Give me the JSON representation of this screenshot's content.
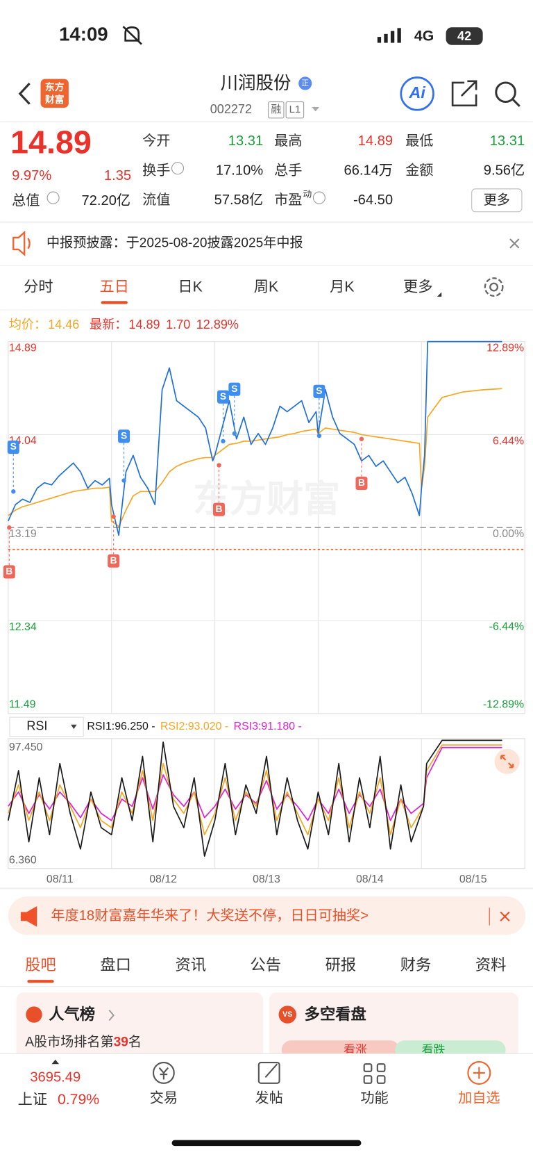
{
  "status_bar": {
    "time": "14:09",
    "network": "4G",
    "battery": "42"
  },
  "header": {
    "logo": [
      "东方",
      "财富"
    ],
    "name": "川润股份",
    "badge": "正",
    "code": "002272",
    "tags": [
      "融",
      "L1"
    ],
    "ai": "Ai"
  },
  "quote": {
    "price": "14.89",
    "change_pct": "9.97%",
    "change": "1.35",
    "market_cap_label": "总值",
    "market_cap": "72.20亿",
    "stats": [
      {
        "label": "今开",
        "value": "13.31",
        "color": "#1a9e3a"
      },
      {
        "label": "最高",
        "value": "14.89",
        "color": "#e8322a"
      },
      {
        "label": "最低",
        "value": "13.31",
        "color": "#1a9e3a"
      },
      {
        "label": "换手",
        "value": "17.10%",
        "info": true
      },
      {
        "label": "总手",
        "value": "66.14万"
      },
      {
        "label": "金额",
        "value": "9.56亿"
      },
      {
        "label": "流值",
        "value": "57.58亿"
      },
      {
        "label": "市盈",
        "sup": "动",
        "value": "-64.50",
        "info": true
      }
    ],
    "more": "更多"
  },
  "notice": {
    "text": "中报预披露：于2025-08-20披露2025年中报"
  },
  "tabs": {
    "items": [
      "分时",
      "五日",
      "日K",
      "周K",
      "月K",
      "更多"
    ],
    "active": 1
  },
  "chart_data": [
    {
      "type": "line",
      "watermark": "东方财富",
      "legend": {
        "avg_label": "均价：",
        "avg": "14.46",
        "last_label": "最新：",
        "last": "14.89",
        "change": "1.70",
        "change_pct": "12.89%"
      },
      "xlim": [
        0,
        5
      ],
      "ylim": [
        11.49,
        14.89
      ],
      "yticks": [
        11.49,
        12.34,
        13.19,
        14.04,
        14.89
      ],
      "y2lim": [
        -12.89,
        12.89
      ],
      "y2ticks": [
        {
          "value": -12.89,
          "label": "-12.89%"
        },
        {
          "value": -6.44,
          "label": "-6.44%"
        },
        {
          "value": 0,
          "label": "0.00%"
        },
        {
          "value": 6.44,
          "label": "6.44%"
        },
        {
          "value": 12.89,
          "label": "12.89%"
        }
      ],
      "reference_line": {
        "value": 12.99,
        "color": "#ff5a1f"
      },
      "x": [
        0,
        0.07,
        0.14,
        0.21,
        0.28,
        0.35,
        0.42,
        0.49,
        0.56,
        0.63,
        0.7,
        0.77,
        0.84,
        0.91,
        0.98,
        1,
        1.07,
        1.14,
        1.21,
        1.28,
        1.35,
        1.42,
        1.49,
        1.56,
        1.63,
        1.7,
        1.77,
        1.84,
        1.91,
        1.98,
        2,
        2.07,
        2.14,
        2.21,
        2.28,
        2.35,
        2.42,
        2.49,
        2.56,
        2.63,
        2.7,
        2.77,
        2.84,
        2.91,
        2.98,
        3,
        3.07,
        3.14,
        3.21,
        3.28,
        3.35,
        3.42,
        3.49,
        3.56,
        3.63,
        3.7,
        3.77,
        3.84,
        3.91,
        3.98,
        4,
        4.03,
        4.06,
        4.2,
        4.4,
        4.6,
        4.78
      ],
      "series": [
        {
          "name": "最新",
          "color": "#1e6fd9",
          "values": [
            13.25,
            13.4,
            13.45,
            13.42,
            13.55,
            13.6,
            13.58,
            13.66,
            13.72,
            13.78,
            13.7,
            13.55,
            13.62,
            13.58,
            13.64,
            13.4,
            13.12,
            13.7,
            13.85,
            13.65,
            13.55,
            13.4,
            14.45,
            14.65,
            14.35,
            14.3,
            14.25,
            14.2,
            14.1,
            13.8,
            13.85,
            14.1,
            14.35,
            14.0,
            14.2,
            13.95,
            14.05,
            13.95,
            14.1,
            14.3,
            14.25,
            14.3,
            14.35,
            14.15,
            14.25,
            14.05,
            14.45,
            14.2,
            14.05,
            14.0,
            13.95,
            13.8,
            13.85,
            13.75,
            13.8,
            13.7,
            13.6,
            13.65,
            13.5,
            13.3,
            13.55,
            13.85,
            14.89,
            14.89,
            14.89,
            14.89,
            14.89
          ]
        },
        {
          "name": "均价",
          "color": "#f5a623",
          "values": [
            13.3,
            13.35,
            13.38,
            13.4,
            13.42,
            13.44,
            13.46,
            13.48,
            13.5,
            13.52,
            13.53,
            13.54,
            13.55,
            13.55,
            13.56,
            13.25,
            13.2,
            13.35,
            13.48,
            13.52,
            13.52,
            13.52,
            13.6,
            13.7,
            13.75,
            13.78,
            13.8,
            13.82,
            13.83,
            13.83,
            13.85,
            13.9,
            13.95,
            13.96,
            13.98,
            13.98,
            13.99,
            14.0,
            14.01,
            14.02,
            14.04,
            14.05,
            14.07,
            14.08,
            14.09,
            14.05,
            14.1,
            14.09,
            14.08,
            14.07,
            14.06,
            14.04,
            14.03,
            14.02,
            14.01,
            14.0,
            13.99,
            13.98,
            13.97,
            13.96,
            13.55,
            13.75,
            14.2,
            14.38,
            14.43,
            14.45,
            14.46
          ]
        }
      ],
      "annotations": [
        {
          "label": "S",
          "x": 0.05,
          "y": 13.52,
          "color": "#3d8ef0"
        },
        {
          "label": "B",
          "x": 0.01,
          "y": 13.19,
          "color": "#f0675a"
        },
        {
          "label": "B",
          "x": 1.02,
          "y": 13.29,
          "color": "#f0675a"
        },
        {
          "label": "S",
          "x": 1.12,
          "y": 13.62,
          "color": "#3d8ef0"
        },
        {
          "label": "B",
          "x": 2.04,
          "y": 13.76,
          "color": "#f0675a"
        },
        {
          "label": "S",
          "x": 2.08,
          "y": 13.98,
          "color": "#3d8ef0"
        },
        {
          "label": "S",
          "x": 2.19,
          "y": 14.05,
          "color": "#3d8ef0"
        },
        {
          "label": "S",
          "x": 3.01,
          "y": 14.03,
          "color": "#3d8ef0"
        },
        {
          "label": "B",
          "x": 3.42,
          "y": 14.0,
          "color": "#f0675a"
        }
      ]
    },
    {
      "type": "line",
      "selector": "RSI",
      "xlim": [
        0,
        5
      ],
      "ylim": [
        6.36,
        97.45
      ],
      "yticks": [
        {
          "value": 6.36,
          "label": "6.360"
        },
        {
          "value": 97.45,
          "label": "97.450"
        }
      ],
      "xticks": [
        {
          "value": 0.5,
          "label": "08/11"
        },
        {
          "value": 1.5,
          "label": "08/12"
        },
        {
          "value": 2.5,
          "label": "08/13"
        },
        {
          "value": 3.5,
          "label": "08/14"
        },
        {
          "value": 4.5,
          "label": "08/15"
        }
      ],
      "x": [
        0,
        0.1,
        0.2,
        0.3,
        0.4,
        0.5,
        0.6,
        0.7,
        0.8,
        0.9,
        1,
        1.1,
        1.2,
        1.3,
        1.4,
        1.5,
        1.6,
        1.7,
        1.8,
        1.9,
        2,
        2.1,
        2.2,
        2.3,
        2.4,
        2.5,
        2.6,
        2.7,
        2.8,
        2.9,
        3,
        3.1,
        3.2,
        3.3,
        3.4,
        3.5,
        3.6,
        3.7,
        3.8,
        3.9,
        4.02,
        4.05,
        4.2,
        4.5,
        4.78
      ],
      "series": [
        {
          "name": "RSI1:96.250 -",
          "color": "#1a1a1a",
          "values": [
            40,
            75,
            25,
            70,
            30,
            80,
            45,
            20,
            60,
            35,
            30,
            70,
            40,
            85,
            25,
            95,
            50,
            35,
            70,
            15,
            40,
            80,
            30,
            65,
            45,
            85,
            30,
            70,
            40,
            20,
            60,
            30,
            80,
            25,
            70,
            35,
            85,
            20,
            65,
            25,
            50,
            80,
            96.25,
            96.25,
            96.25
          ]
        },
        {
          "name": "RSI2:93.020 -",
          "color": "#f5a623",
          "values": [
            45,
            65,
            40,
            60,
            40,
            65,
            50,
            35,
            55,
            40,
            35,
            60,
            45,
            75,
            40,
            80,
            55,
            45,
            60,
            30,
            45,
            70,
            40,
            60,
            50,
            75,
            40,
            60,
            45,
            30,
            55,
            40,
            70,
            35,
            60,
            45,
            70,
            30,
            55,
            35,
            50,
            75,
            93.02,
            93.02,
            93.02
          ]
        },
        {
          "name": "RSI3:91.180 -",
          "color": "#e020d0",
          "values": [
            50,
            60,
            45,
            58,
            48,
            60,
            52,
            42,
            55,
            45,
            40,
            55,
            50,
            70,
            48,
            72,
            58,
            50,
            60,
            42,
            50,
            62,
            48,
            58,
            52,
            68,
            48,
            58,
            50,
            40,
            55,
            45,
            62,
            45,
            58,
            50,
            62,
            40,
            55,
            45,
            52,
            70,
            91.18,
            91.18,
            91.18
          ]
        }
      ]
    }
  ],
  "banner": {
    "text": "年度18财富嘉年华来了！大奖送不停，日日可抽奖>"
  },
  "section_tabs": {
    "items": [
      "股吧",
      "盘口",
      "资讯",
      "公告",
      "研报",
      "财务",
      "资料"
    ],
    "active": 0
  },
  "cards": {
    "popularity": {
      "title": "人气榜",
      "rank_prefix": "A股市场排名第",
      "rank": "39",
      "rank_suffix": "名"
    },
    "sentiment": {
      "icon": "VS",
      "title": "多空看盘",
      "bull": "看涨",
      "bear": "看跌"
    }
  },
  "bottom_nav": {
    "index": {
      "value": "3695.49",
      "name": "上证",
      "change": "0.79%"
    },
    "items": [
      "交易",
      "发帖",
      "功能",
      "加自选"
    ]
  }
}
